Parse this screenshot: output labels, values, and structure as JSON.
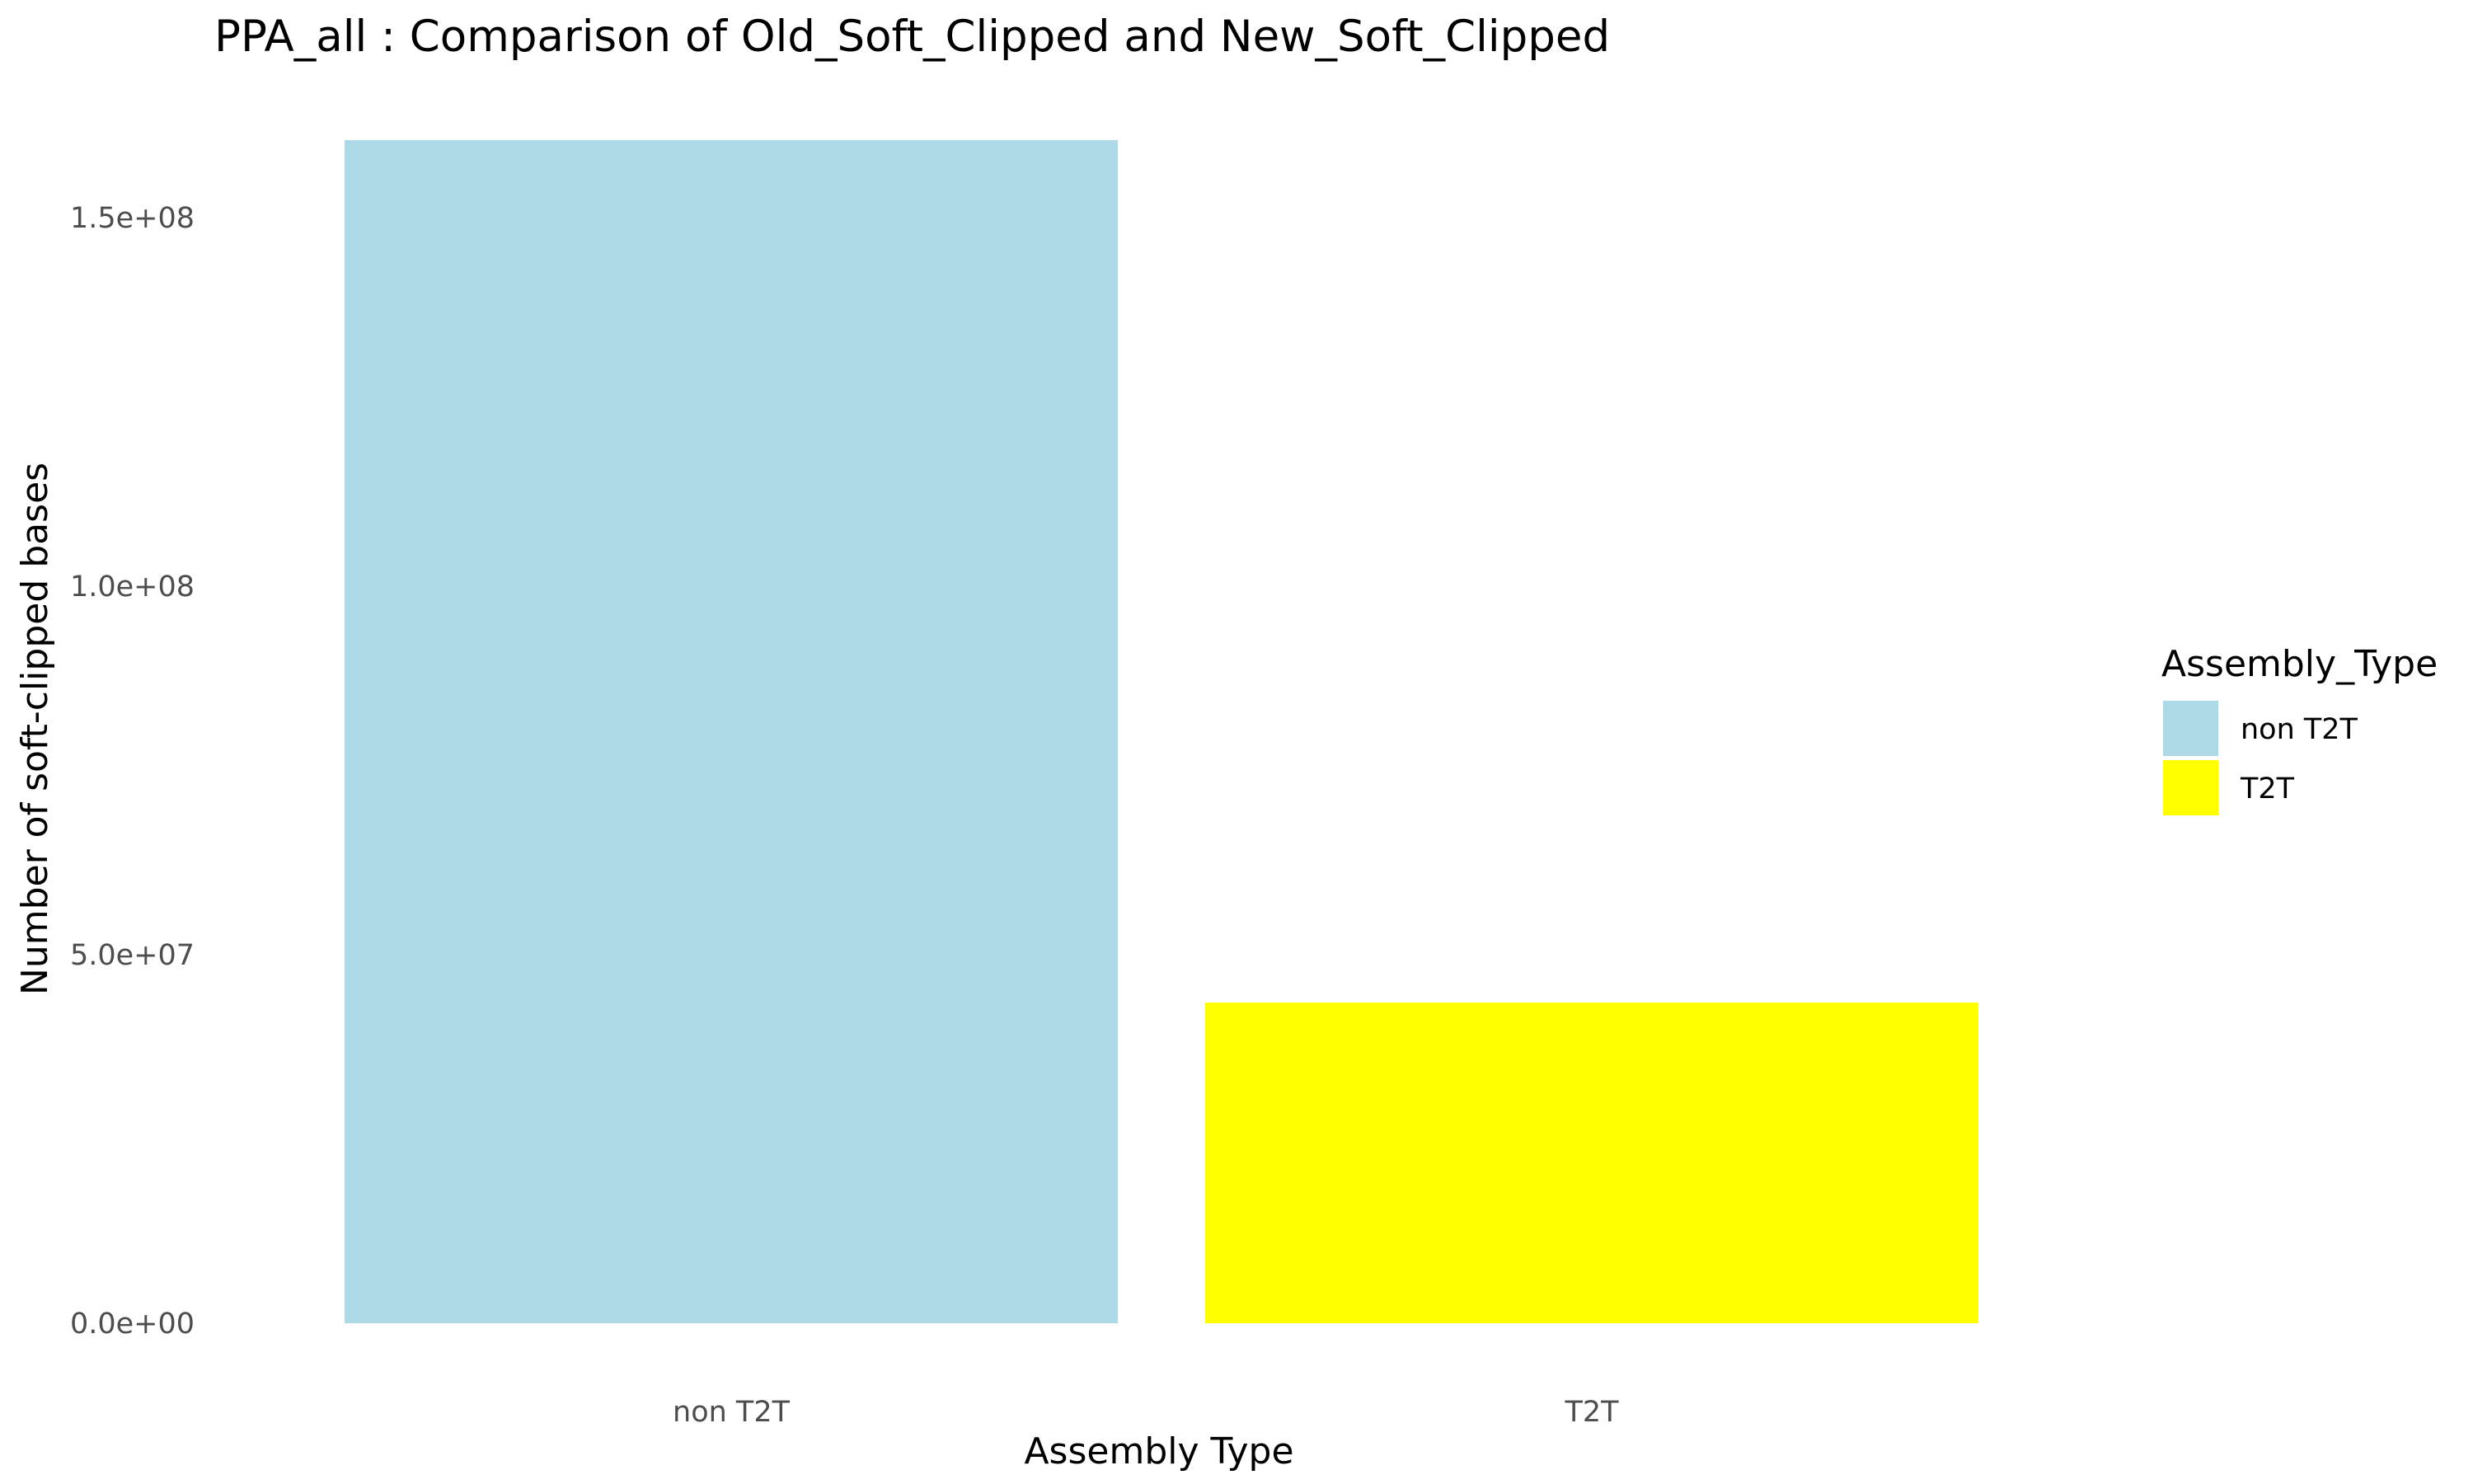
{
  "chart_data": {
    "type": "bar",
    "title": "PPA_all : Comparison of Old_Soft_Clipped and New_Soft_Clipped",
    "xlabel": "Assembly Type",
    "ylabel": "Number of soft-clipped bases",
    "categories": [
      "non T2T",
      "T2T"
    ],
    "values": [
      160500000,
      43500000
    ],
    "colors": [
      "#add8e6",
      "#ffff00"
    ],
    "ylim": [
      0,
      160500000
    ],
    "yticks": [
      0,
      50000000,
      100000000,
      150000000
    ],
    "ytick_labels": [
      "0.0e+00",
      "5.0e+07",
      "1.0e+08",
      "1.5e+08"
    ],
    "grid": false,
    "legend": {
      "title": "Assembly_Type",
      "placement": "right",
      "entries": [
        {
          "label": "non T2T",
          "color": "#add8e6"
        },
        {
          "label": "T2T",
          "color": "#ffff00"
        }
      ]
    }
  }
}
